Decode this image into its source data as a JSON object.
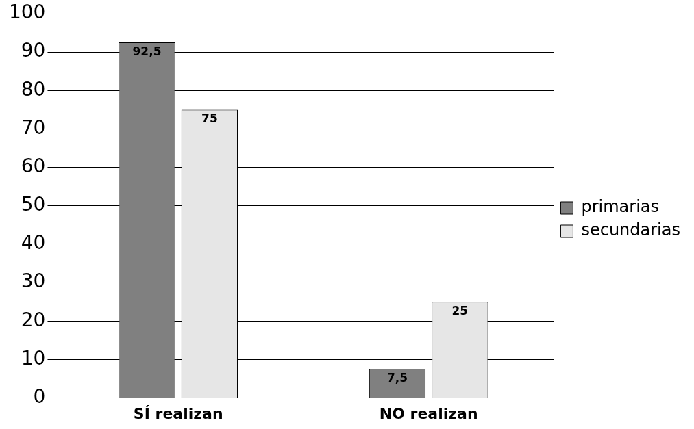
{
  "chart_data": {
    "type": "bar",
    "categories": [
      "SÍ realizan",
      "NO realizan"
    ],
    "series": [
      {
        "name": "primarias",
        "color": "#808080",
        "values": [
          92.5,
          7.5
        ],
        "value_labels": [
          "92,5",
          "7,5"
        ]
      },
      {
        "name": "secundarias",
        "color": "#e6e6e6",
        "values": [
          75,
          25
        ],
        "value_labels": [
          "75",
          "25"
        ]
      }
    ],
    "ylim": [
      0,
      100
    ],
    "yticks": [
      0,
      10,
      20,
      30,
      40,
      50,
      60,
      70,
      80,
      90,
      100
    ],
    "grid": "y",
    "legend": "right"
  }
}
